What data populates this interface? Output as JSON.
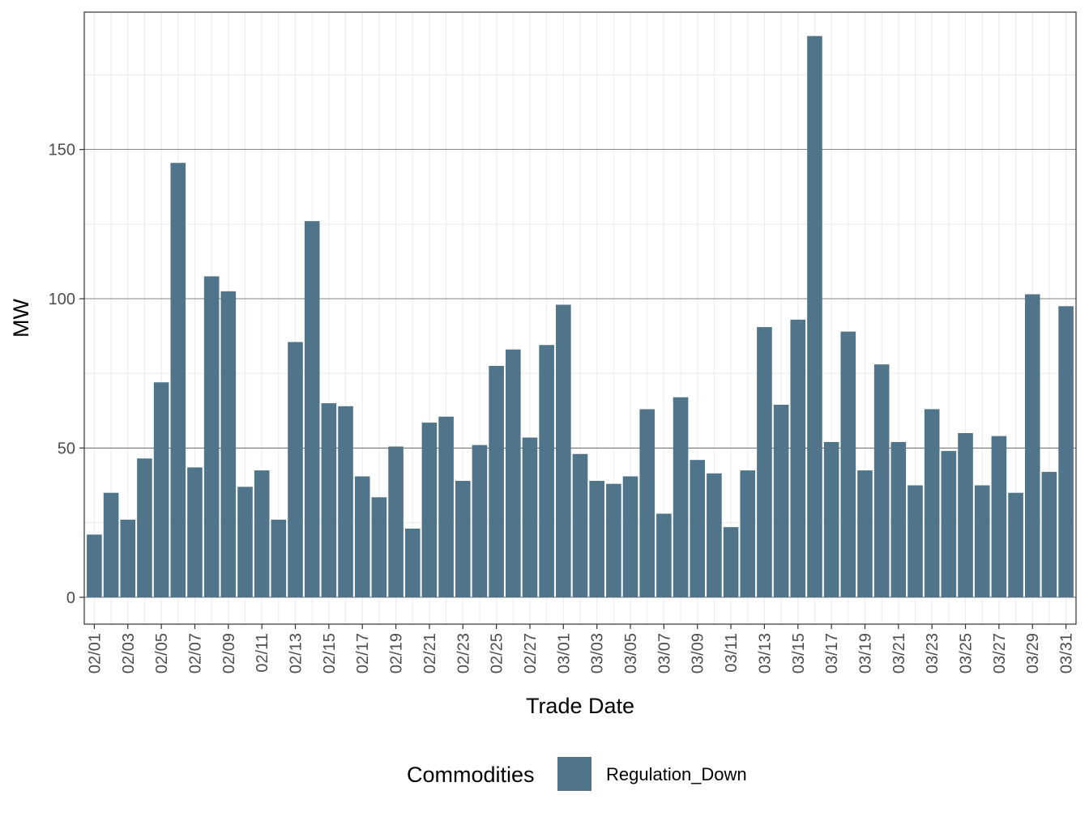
{
  "chart_data": {
    "type": "bar",
    "xlabel": "Trade Date",
    "ylabel": "MW",
    "ylim": [
      -9,
      196
    ],
    "yticks": [
      0,
      50,
      100,
      150
    ],
    "grid": true,
    "legend_position": "bottom",
    "legend_title": "Commodities",
    "bar_color": "#50758a",
    "series": [
      {
        "name": "Regulation_Down",
        "color": "#50758a"
      }
    ],
    "categories": [
      "02/01",
      "02/02",
      "02/03",
      "02/04",
      "02/05",
      "02/06",
      "02/07",
      "02/08",
      "02/09",
      "02/10",
      "02/11",
      "02/12",
      "02/13",
      "02/14",
      "02/15",
      "02/16",
      "02/17",
      "02/18",
      "02/19",
      "02/20",
      "02/21",
      "02/22",
      "02/23",
      "02/24",
      "02/25",
      "02/26",
      "02/27",
      "02/28",
      "03/01",
      "03/02",
      "03/03",
      "03/04",
      "03/05",
      "03/06",
      "03/07",
      "03/08",
      "03/09",
      "03/10",
      "03/11",
      "03/12",
      "03/13",
      "03/14",
      "03/15",
      "03/16",
      "03/17",
      "03/18",
      "03/19",
      "03/20",
      "03/21",
      "03/22",
      "03/23",
      "03/24",
      "03/25",
      "03/26",
      "03/27",
      "03/28",
      "03/29",
      "03/30",
      "03/31"
    ],
    "values": [
      21,
      35,
      26,
      46.5,
      72,
      145.5,
      43.5,
      107.5,
      102.5,
      37,
      42.5,
      26,
      85.5,
      126,
      65,
      64,
      40.5,
      33.5,
      50.5,
      23,
      58.5,
      60.5,
      39,
      51,
      77.5,
      83,
      53.5,
      84.5,
      98,
      48,
      39,
      38,
      40.5,
      63,
      28,
      67,
      46,
      41.5,
      23.5,
      42.5,
      90.5,
      64.5,
      93,
      188,
      52,
      89,
      42.5,
      78,
      52,
      37.5,
      63,
      49,
      55,
      37.5,
      54,
      35,
      101.5,
      42,
      97.5
    ],
    "xtick_labels": [
      "02/01",
      "02/03",
      "02/05",
      "02/07",
      "02/09",
      "02/11",
      "02/13",
      "02/15",
      "02/17",
      "02/19",
      "02/21",
      "02/23",
      "02/25",
      "02/27",
      "03/01",
      "03/03",
      "03/05",
      "03/07",
      "03/09",
      "03/11",
      "03/13",
      "03/15",
      "03/17",
      "03/19",
      "03/21",
      "03/23",
      "03/25",
      "03/27",
      "03/29",
      "03/31"
    ]
  }
}
